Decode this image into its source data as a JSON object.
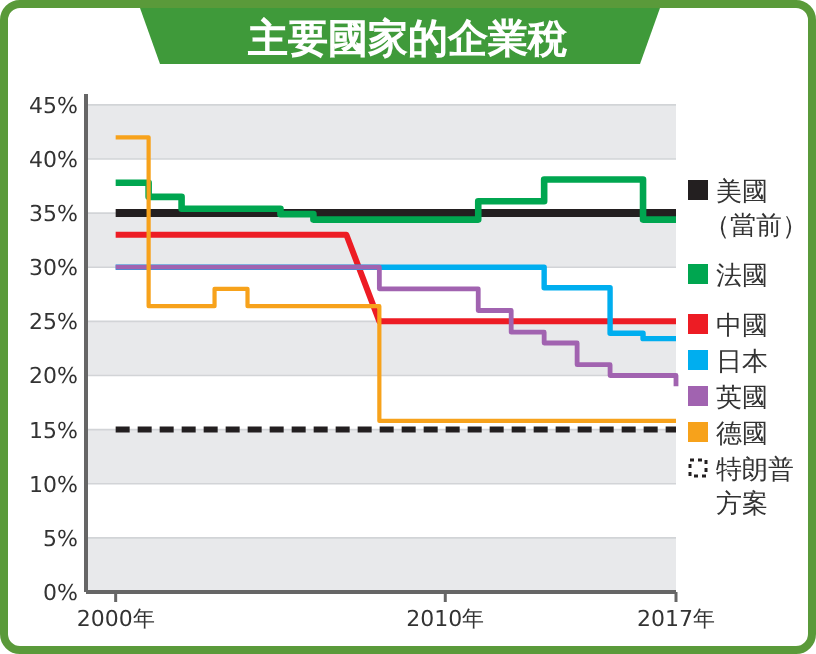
{
  "chart_data": {
    "type": "step",
    "title": "主要國家的企業稅",
    "xlim": [
      1999.1,
      2017
    ],
    "xticks": [
      {
        "value": 2000,
        "label": "2000年"
      },
      {
        "value": 2010,
        "label": "2010年"
      },
      {
        "value": 2017,
        "label": "2017年"
      }
    ],
    "ylim": [
      0,
      46
    ],
    "yticks": [
      {
        "value": 0,
        "label": "0%"
      },
      {
        "value": 5,
        "label": "5%"
      },
      {
        "value": 10,
        "label": "10%"
      },
      {
        "value": 15,
        "label": "15%"
      },
      {
        "value": 20,
        "label": "20%"
      },
      {
        "value": 25,
        "label": "25%"
      },
      {
        "value": 30,
        "label": "30%"
      },
      {
        "value": 35,
        "label": "35%"
      },
      {
        "value": 40,
        "label": "40%"
      },
      {
        "value": 45,
        "label": "45%"
      }
    ],
    "grid": "y",
    "legend": "right",
    "series": [
      {
        "name": "美國（當前）",
        "color": "#231f20",
        "x": [
          2000,
          2017
        ],
        "values": [
          35,
          35
        ]
      },
      {
        "name": "法國",
        "color": "#00a650",
        "x": [
          2000,
          2001,
          2002,
          2005,
          2006,
          2011,
          2013,
          2016,
          2017
        ],
        "values": [
          37.8,
          36.5,
          35.4,
          34.9,
          34.4,
          36.1,
          38.1,
          34.4,
          34.4
        ]
      },
      {
        "name": "中國",
        "color": "#ed1c24",
        "type": "line",
        "x": [
          2000,
          2007,
          2008,
          2017
        ],
        "values": [
          33,
          33,
          25,
          25
        ]
      },
      {
        "name": "日本",
        "color": "#00aeef",
        "x": [
          2000,
          2013,
          2015,
          2016,
          2017
        ],
        "values": [
          30,
          28.1,
          23.9,
          23.4,
          23.4
        ]
      },
      {
        "name": "英國",
        "color": "#a163b0",
        "x": [
          2000,
          2008,
          2011,
          2012,
          2013,
          2014,
          2015,
          2017
        ],
        "values": [
          30,
          28,
          26,
          24,
          23,
          21,
          20,
          19
        ]
      },
      {
        "name": "德國",
        "color": "#f7a21b",
        "x": [
          2000,
          2001,
          2003,
          2004,
          2008,
          2017
        ],
        "values": [
          42,
          26.4,
          28,
          26.4,
          15.8,
          15.8
        ]
      },
      {
        "name": "特朗普方案",
        "color": "#231f20",
        "type": "line",
        "line_style": "dashed",
        "x": [
          2000,
          2017
        ],
        "values": [
          15,
          15
        ]
      }
    ]
  }
}
